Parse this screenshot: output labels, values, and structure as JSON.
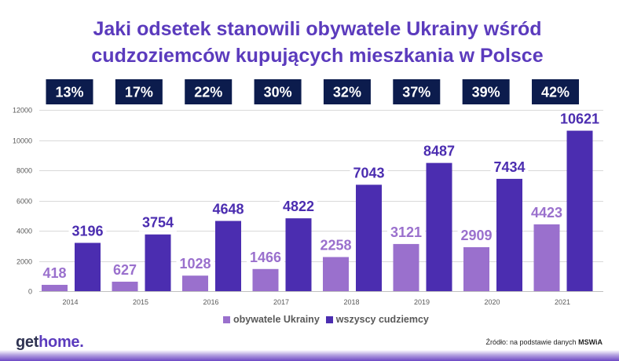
{
  "chart_data": {
    "type": "bar",
    "title_lines": [
      "Jaki odsetek stanowili obywatele Ukrainy wśród",
      "cudzoziemców kupujących mieszkania w Polsce"
    ],
    "categories": [
      "2014",
      "2015",
      "2016",
      "2017",
      "2018",
      "2019",
      "2020",
      "2021"
    ],
    "shares": [
      "13%",
      "17%",
      "22%",
      "30%",
      "32%",
      "37%",
      "39%",
      "42%"
    ],
    "series": [
      {
        "name": "obywatele Ukrainy",
        "color": "#9a70cd",
        "values": [
          418,
          627,
          1028,
          1466,
          2258,
          3121,
          2909,
          4423
        ]
      },
      {
        "name": "wszyscy cudziemcy",
        "color": "#4b2db0",
        "values": [
          3196,
          3754,
          4648,
          4822,
          7043,
          8487,
          7434,
          10621
        ]
      }
    ],
    "yticks": [
      0,
      2000,
      4000,
      6000,
      8000,
      10000,
      12000
    ],
    "ylim": [
      0,
      12000
    ],
    "grid": true,
    "legend": "bottom"
  },
  "branding": {
    "logo_part1": "get",
    "logo_part2": "home."
  },
  "source": {
    "prefix": "Źródło: na podstawie danych",
    "bold": "MSWiA"
  },
  "colors": {
    "title": "#5b3bbd",
    "share_box": "#0c1c4d",
    "logo_dark": "#2f3352",
    "logo_accent": "#5b3bbd"
  }
}
